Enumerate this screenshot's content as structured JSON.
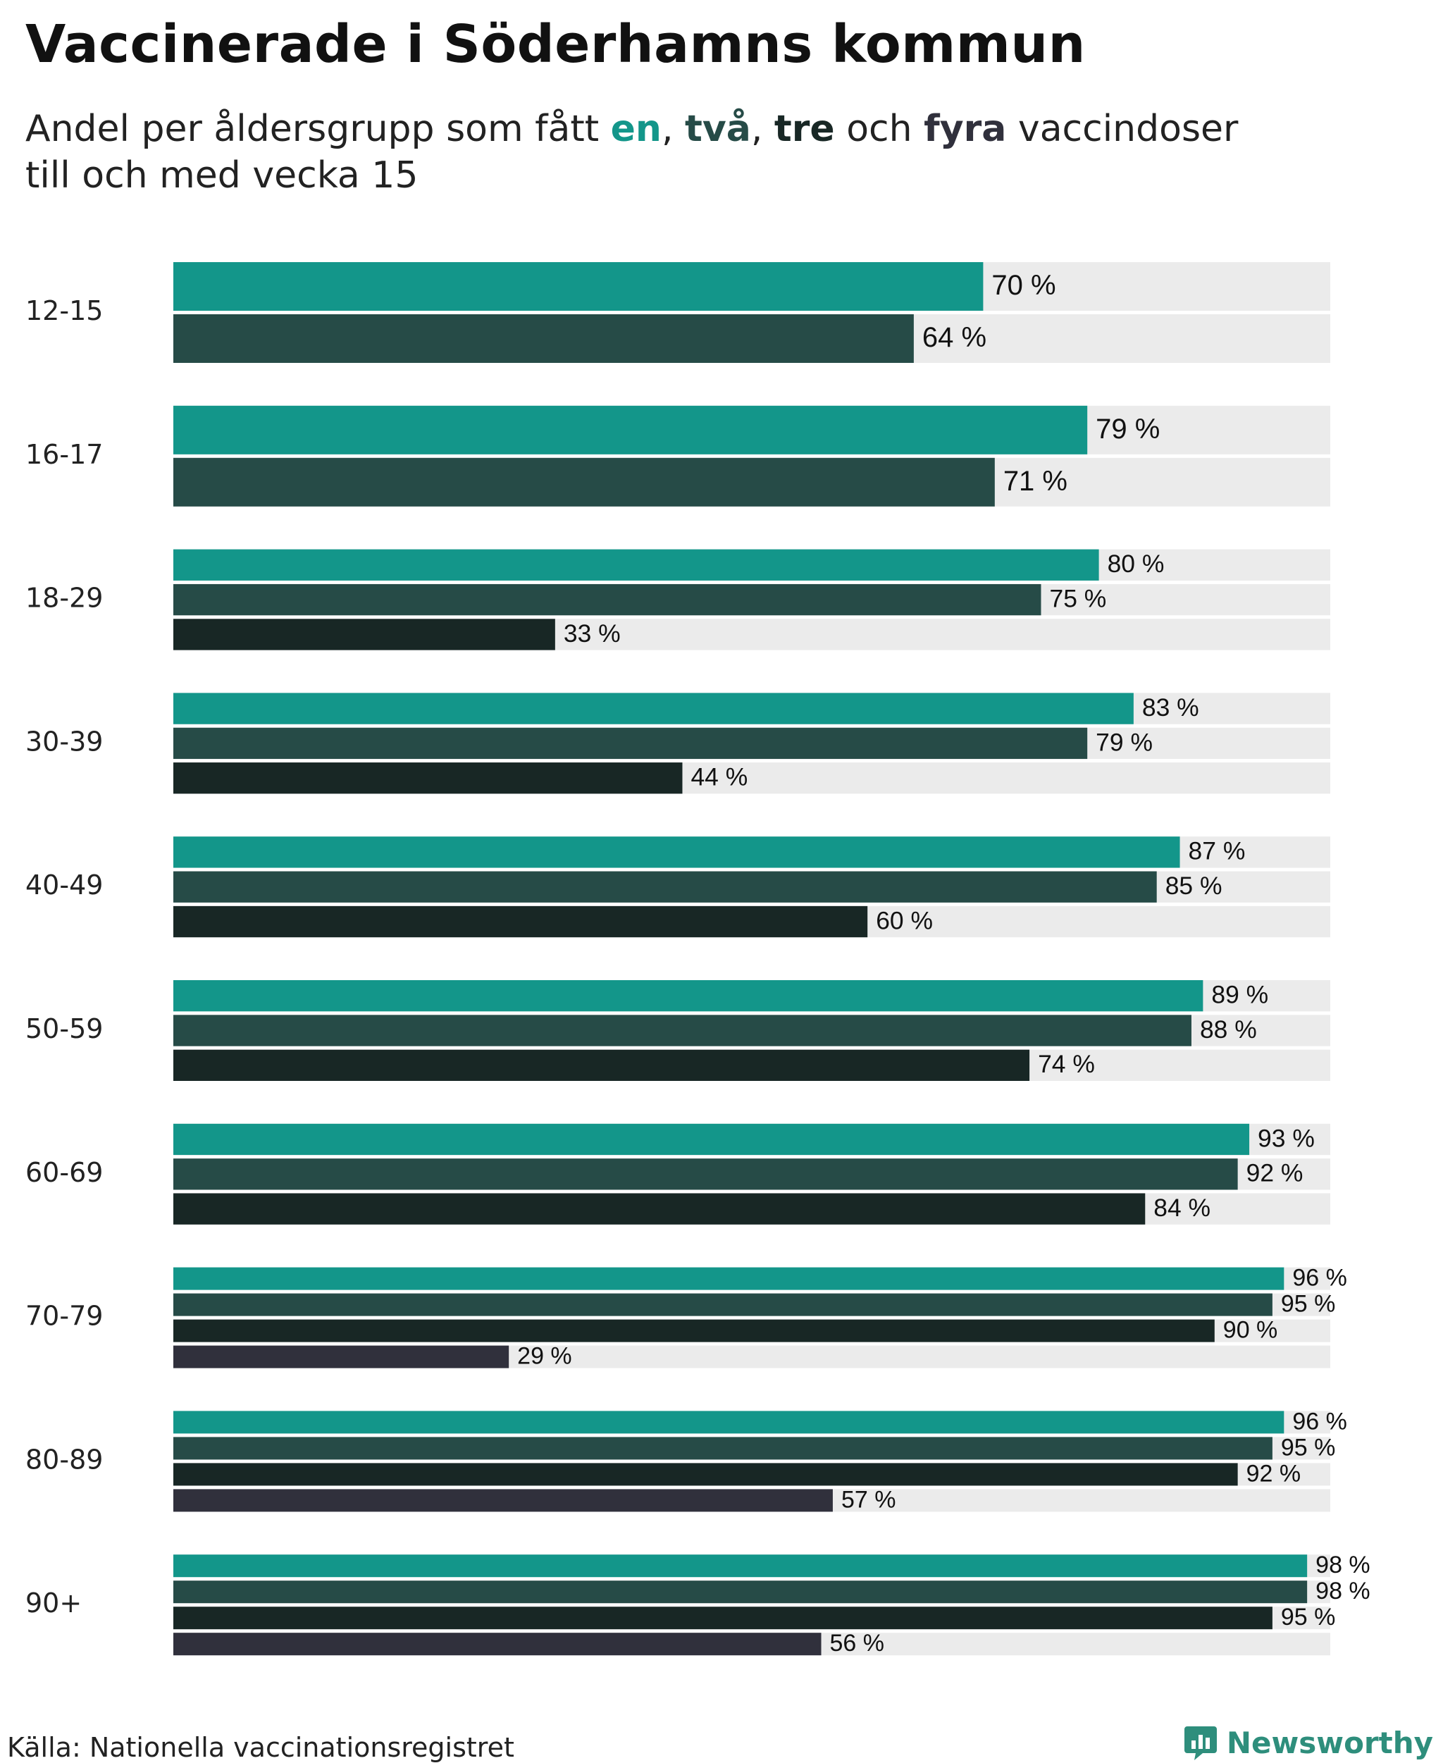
{
  "title": "Vaccinerade i Söderhamns kommun",
  "subtitle": {
    "prefix": "Andel per åldersgrupp som fått ",
    "kw1": "en",
    "sep1": ", ",
    "kw2": "två",
    "sep2": ", ",
    "kw3": "tre",
    "mid": " och ",
    "kw4": "fyra",
    "suffix": " vaccindoser",
    "line2": "till och med vecka 15"
  },
  "source": "Källa: Nationella vaccinationsregistret",
  "brand": {
    "name": "Newsworthy",
    "icon": "newsworthy-logo-icon"
  },
  "colors": {
    "dose1": "#13968a",
    "dose2": "#264b47",
    "dose3": "#182725",
    "dose4": "#30303c",
    "track": "#ebebeb",
    "brand": "#2e8e7c"
  },
  "chart_data": {
    "type": "bar",
    "orientation": "horizontal",
    "categories": [
      "12-15",
      "16-17",
      "18-29",
      "30-39",
      "40-49",
      "50-59",
      "60-69",
      "70-79",
      "80-89",
      "90+"
    ],
    "series": [
      {
        "name": "en",
        "values": [
          70,
          79,
          80,
          83,
          87,
          89,
          93,
          96,
          96,
          98
        ]
      },
      {
        "name": "två",
        "values": [
          64,
          71,
          75,
          79,
          85,
          88,
          92,
          95,
          95,
          98
        ]
      },
      {
        "name": "tre",
        "values": [
          null,
          null,
          33,
          44,
          60,
          74,
          84,
          90,
          92,
          95
        ]
      },
      {
        "name": "fyra",
        "values": [
          null,
          null,
          null,
          null,
          null,
          null,
          null,
          29,
          57,
          56
        ]
      }
    ],
    "value_suffix": " %",
    "xlim": [
      0,
      100
    ],
    "title": "Vaccinerade i Söderhamns kommun",
    "xlabel": "",
    "ylabel": "",
    "grid": false,
    "legend": "none"
  }
}
